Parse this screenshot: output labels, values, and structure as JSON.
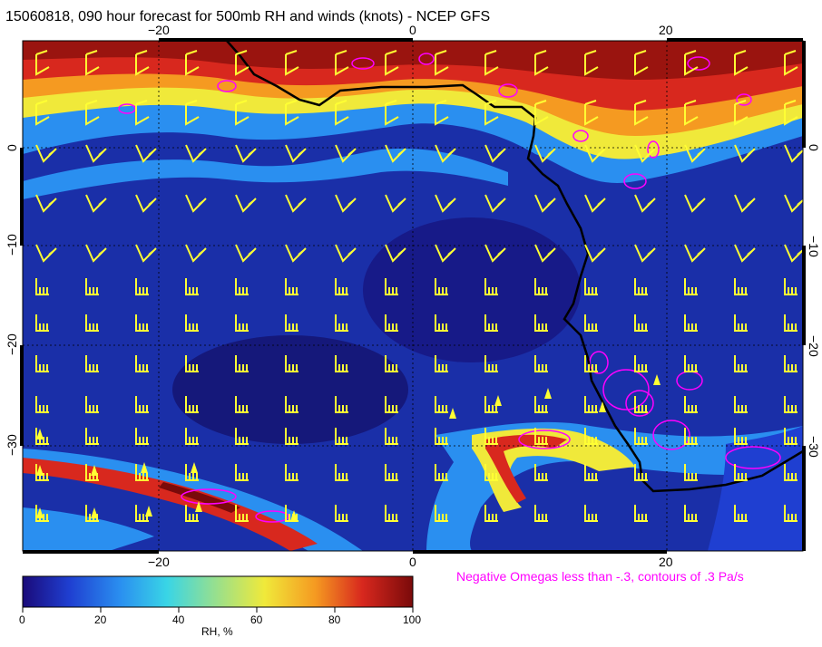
{
  "title": "15060818, 090 hour forecast for 500mb RH and winds (knots) - NCEP GFS",
  "annotation": "Negative Omegas less than -.3, contours of .3 Pa/s",
  "axes": {
    "x_ticks_top": [
      "−20",
      "0",
      "20"
    ],
    "x_ticks_bottom": [
      "−20",
      "0",
      "20"
    ],
    "y_ticks_left": [
      "0",
      "−10",
      "−20",
      "−30"
    ],
    "y_ticks_right": [
      "0",
      "−10",
      "−20",
      "−30"
    ]
  },
  "colorbar": {
    "title": "RH, %",
    "ticks": [
      "0",
      "20",
      "40",
      "60",
      "80",
      "100"
    ],
    "colors": [
      "#1a0a7a",
      "#1f3fd1",
      "#2a8ff0",
      "#39d5e6",
      "#9be08a",
      "#f0e93a",
      "#f59a21",
      "#d8281e",
      "#7a0a0a"
    ]
  },
  "colors": {
    "coastline": "#000000",
    "wind_barbs": "#ffff33",
    "omega_contours": "#ff00ff",
    "gridlines": "#000000"
  }
}
